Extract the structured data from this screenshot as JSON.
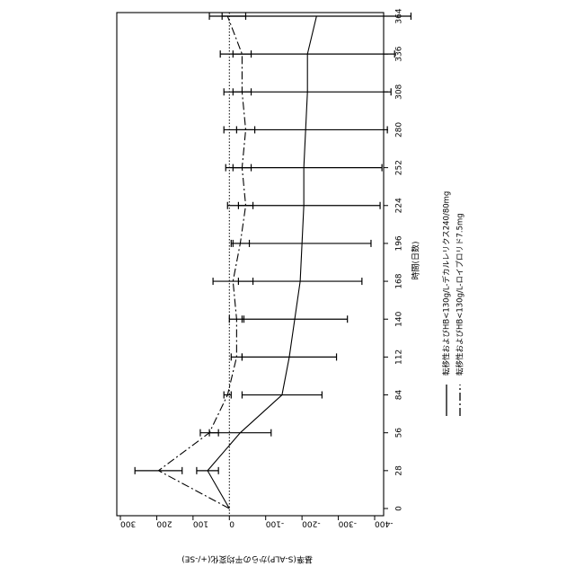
{
  "chart_data": {
    "type": "line",
    "orientation": "rotated-90-ccw",
    "x_ticks": [
      0,
      28,
      56,
      84,
      112,
      140,
      168,
      196,
      224,
      252,
      280,
      308,
      336,
      364
    ],
    "y_ticks": [
      300,
      200,
      100,
      0,
      -100,
      -200,
      -300,
      -400
    ],
    "y_tick_labels": [
      "300",
      "200",
      "100",
      "0",
      "-100",
      "-200",
      "-300",
      "-400"
    ],
    "xlim": [
      0,
      364
    ],
    "ylim": [
      -400,
      300
    ],
    "xlabel": "時間(日数)",
    "ylabel": "基準(S-ALP)からの平均変化(+/-SE)",
    "zero_reference_line": "dotted",
    "series": [
      {
        "name": "転移性およびHB<130g/L-デカルレリクス240/80mg",
        "line_style": "solid",
        "x": [
          0,
          28,
          56,
          84,
          112,
          140,
          168,
          196,
          224,
          252,
          280,
          308,
          336,
          364
        ],
        "y": [
          0,
          60,
          -30,
          -145,
          -165,
          -180,
          -195,
          -200,
          -205,
          -205,
          -210,
          -215,
          -215,
          -240
        ],
        "err": [
          0,
          30,
          85,
          110,
          130,
          145,
          170,
          190,
          210,
          215,
          225,
          230,
          240,
          260
        ]
      },
      {
        "name": "転移性およびHB<130g/L-ロイプロリド7.5mg",
        "line_style": "dash-dot",
        "x": [
          0,
          28,
          56,
          84,
          112,
          140,
          168,
          196,
          224,
          252,
          280,
          308,
          336,
          364
        ],
        "y": [
          0,
          195,
          55,
          5,
          -20,
          -20,
          -10,
          -30,
          -45,
          -35,
          -45,
          -35,
          -35,
          5
        ],
        "err": [
          0,
          65,
          25,
          10,
          15,
          20,
          55,
          25,
          20,
          25,
          25,
          25,
          25,
          50
        ]
      }
    ]
  }
}
